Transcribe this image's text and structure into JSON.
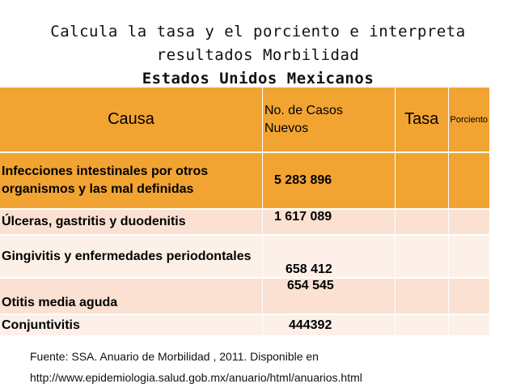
{
  "header": {
    "title_lines": [
      "Calcula la tasa y el porciento e interpreta",
      "resultados Morbilidad",
      "Estados Unidos Mexicanos"
    ]
  },
  "table": {
    "columns": [
      "Causa",
      "No. de Casos Nuevos",
      "Tasa",
      "Porciento"
    ],
    "rows": [
      [
        "Infecciones intestinales por otros organismos y las mal definidas",
        "5 283 896"
      ],
      [
        "Úlceras, gastritis y duodenitis",
        "1 617 089"
      ],
      [
        "Gingivitis y enfermedades periodontales",
        "658 412"
      ],
      [
        "Otitis media aguda",
        "654 545"
      ],
      [
        "Conjuntivitis",
        "444392"
      ]
    ]
  },
  "footer": {
    "source_lines": [
      "Fuente: SSA. Anuario de Morbilidad , 2011. Disponible en",
      "http://www.epidemiologia.salud.gob.mx/anuario/html/anuarios.html"
    ]
  }
}
